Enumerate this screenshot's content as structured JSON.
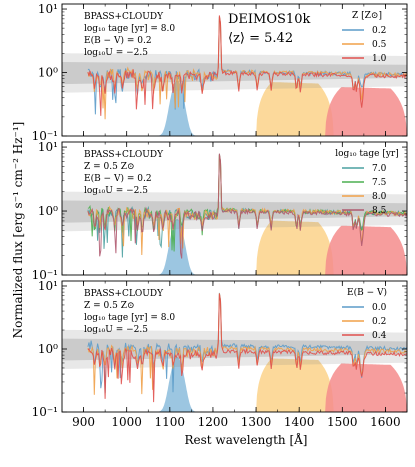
{
  "figure": {
    "ylabel": "Normalized flux [erg s⁻¹ cm⁻² Hz⁻¹]",
    "xlabel": "Rest wavelength [Å]"
  },
  "chart_data": [
    {
      "type": "line",
      "panel": "top",
      "xlim": [
        850,
        1650
      ],
      "ylim": [
        0.1,
        12
      ],
      "yscale": "log",
      "xticks": [
        900,
        1000,
        1100,
        1200,
        1300,
        1400,
        1500,
        1600
      ],
      "yticks": [
        {
          "v": 0.1,
          "label": "10⁻¹"
        },
        {
          "v": 1,
          "label": "10⁰"
        },
        {
          "v": 10,
          "label": "10¹"
        }
      ],
      "annotation_lines": [
        "BPASS+CLOUDY",
        "log₁₀ tage [yr] = 8.0",
        "E(B − V) = 0.2",
        "log₁₀U = −2.5"
      ],
      "big_label_1": "DEIMOS10k",
      "big_label_2": "⟨z⟩ = 5.42",
      "legend_title": "Z [Z⊙]",
      "legend_position": "top-right",
      "series": [
        {
          "name": "0.2",
          "color": "#5b9bc9",
          "uv": 1.0,
          "lya": 8.5,
          "civ": 0.4
        },
        {
          "name": "0.5",
          "color": "#f0a048",
          "uv": 1.0,
          "lya": 8.5,
          "civ": 0.6
        },
        {
          "name": "1.0",
          "color": "#e0504d",
          "uv": 0.95,
          "lya": 9.0,
          "civ": 0.7
        }
      ],
      "filters": [
        {
          "color": "#8bbcdc",
          "center": 1117,
          "fwhm": 22,
          "peak": 0.65,
          "type": "narrow"
        },
        {
          "color": "#fcd28a",
          "start": 1300,
          "end": 1480,
          "peak": 0.62,
          "type": "broad"
        },
        {
          "color": "#f58c8c",
          "start": 1460,
          "end": 1650,
          "peak": 0.5,
          "type": "broad"
        }
      ]
    },
    {
      "type": "line",
      "panel": "middle",
      "xlim": [
        850,
        1650
      ],
      "ylim": [
        0.1,
        12
      ],
      "yscale": "log",
      "xticks": [
        900,
        1000,
        1100,
        1200,
        1300,
        1400,
        1500,
        1600
      ],
      "yticks": [
        {
          "v": 0.1,
          "label": "10⁻¹"
        },
        {
          "v": 1,
          "label": "10⁰"
        },
        {
          "v": 10,
          "label": "10¹"
        }
      ],
      "annotation_lines": [
        "BPASS+CLOUDY",
        "Z = 0.5 Z⊙",
        "E(B − V) = 0.2",
        "log₁₀U = −2.5"
      ],
      "legend_title": "log₁₀ tage [yr]",
      "legend_position": "top-right",
      "series": [
        {
          "name": "7.0",
          "color": "#4aa0a0",
          "uv": 1.0,
          "lya": 8.5,
          "civ": 0.45
        },
        {
          "name": "7.5",
          "color": "#4caf50",
          "uv": 1.0,
          "lya": 8.5,
          "civ": 0.5
        },
        {
          "name": "8.0",
          "color": "#f0a048",
          "uv": 1.0,
          "lya": 8.5,
          "civ": 0.65
        },
        {
          "name": "8.5",
          "color": "#b05a70",
          "uv": 0.95,
          "lya": 9.0,
          "civ": 0.7
        }
      ],
      "filters": [
        {
          "color": "#8bbcdc",
          "center": 1117,
          "fwhm": 22,
          "peak": 0.65,
          "type": "narrow"
        },
        {
          "color": "#fcd28a",
          "start": 1300,
          "end": 1480,
          "peak": 0.62,
          "type": "broad"
        },
        {
          "color": "#f58c8c",
          "start": 1460,
          "end": 1650,
          "peak": 0.5,
          "type": "broad"
        }
      ]
    },
    {
      "type": "line",
      "panel": "bottom",
      "xlim": [
        850,
        1650
      ],
      "ylim": [
        0.1,
        12
      ],
      "yscale": "log",
      "xticks": [
        900,
        1000,
        1100,
        1200,
        1300,
        1400,
        1500,
        1600
      ],
      "yticks": [
        {
          "v": 0.1,
          "label": "10⁻¹"
        },
        {
          "v": 1,
          "label": "10⁰"
        },
        {
          "v": 10,
          "label": "10¹"
        }
      ],
      "annotation_lines": [
        "BPASS+CLOUDY",
        "Z = 0.5 Z⊙",
        "log₁₀ tage [yr] = 8.0",
        "log₁₀U = −2.5"
      ],
      "legend_title": "E(B − V)",
      "legend_position": "top-right",
      "series": [
        {
          "name": "0.0",
          "color": "#5b9bc9",
          "uv": 1.1,
          "lya": 8.5,
          "civ": 0.65
        },
        {
          "name": "0.2",
          "color": "#f0a048",
          "uv": 1.0,
          "lya": 8.5,
          "civ": 0.6
        },
        {
          "name": "0.4",
          "color": "#e0504d",
          "uv": 0.9,
          "lya": 8.5,
          "civ": 0.55
        }
      ],
      "filters": [
        {
          "color": "#8bbcdc",
          "center": 1117,
          "fwhm": 22,
          "peak": 0.65,
          "type": "narrow"
        },
        {
          "color": "#fcd28a",
          "start": 1300,
          "end": 1480,
          "peak": 0.62,
          "type": "broad"
        },
        {
          "color": "#f58c8c",
          "start": 1460,
          "end": 1650,
          "peak": 0.5,
          "type": "broad"
        }
      ]
    }
  ]
}
